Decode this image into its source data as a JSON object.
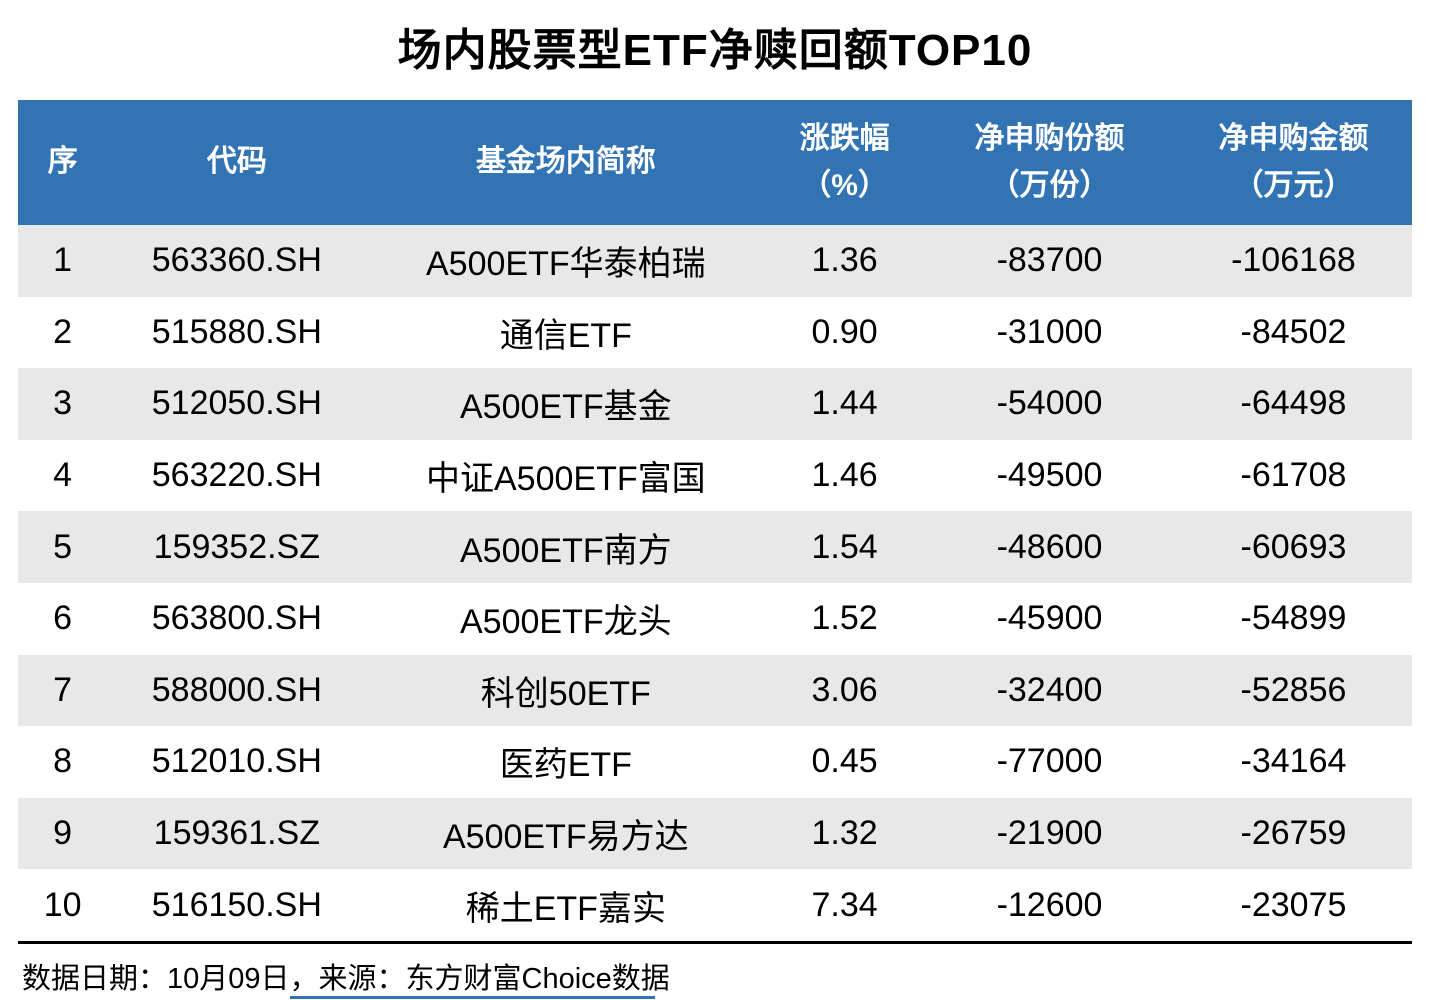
{
  "title": "场内股票型ETF净赎回额TOP10",
  "colors": {
    "header_bg": "#3173B3",
    "header_text": "#FFFFFF",
    "row_alt_bg": "#E8E8E8",
    "row_bg": "#FFFFFF",
    "divider": "#000000",
    "accent_line": "#2E74B5",
    "body_text": "#000000"
  },
  "chart_data": {
    "type": "table",
    "title": "场内股票型ETF净赎回额TOP10",
    "headers": [
      {
        "line1": "序",
        "line2": ""
      },
      {
        "line1": "代码",
        "line2": ""
      },
      {
        "line1": "基金场内简称",
        "line2": ""
      },
      {
        "line1": "涨跌幅",
        "line2": "（%）"
      },
      {
        "line1": "净申购份额",
        "line2": "（万份）"
      },
      {
        "line1": "净申购金额",
        "line2": "（万元）"
      }
    ],
    "rows": [
      {
        "seq": "1",
        "code": "563360.SH",
        "name": "A500ETF华泰柏瑞",
        "chg": "1.36",
        "shares": "-83700",
        "amount": "-106168"
      },
      {
        "seq": "2",
        "code": "515880.SH",
        "name": "通信ETF",
        "chg": "0.90",
        "shares": "-31000",
        "amount": "-84502"
      },
      {
        "seq": "3",
        "code": "512050.SH",
        "name": "A500ETF基金",
        "chg": "1.44",
        "shares": "-54000",
        "amount": "-64498"
      },
      {
        "seq": "4",
        "code": "563220.SH",
        "name": "中证A500ETF富国",
        "chg": "1.46",
        "shares": "-49500",
        "amount": "-61708"
      },
      {
        "seq": "5",
        "code": "159352.SZ",
        "name": "A500ETF南方",
        "chg": "1.54",
        "shares": "-48600",
        "amount": "-60693"
      },
      {
        "seq": "6",
        "code": "563800.SH",
        "name": "A500ETF龙头",
        "chg": "1.52",
        "shares": "-45900",
        "amount": "-54899"
      },
      {
        "seq": "7",
        "code": "588000.SH",
        "name": "科创50ETF",
        "chg": "3.06",
        "shares": "-32400",
        "amount": "-52856"
      },
      {
        "seq": "8",
        "code": "512010.SH",
        "name": "医药ETF",
        "chg": "0.45",
        "shares": "-77000",
        "amount": "-34164"
      },
      {
        "seq": "9",
        "code": "159361.SZ",
        "name": "A500ETF易方达",
        "chg": "1.32",
        "shares": "-21900",
        "amount": "-26759"
      },
      {
        "seq": "10",
        "code": "516150.SH",
        "name": "稀土ETF嘉实",
        "chg": "7.34",
        "shares": "-12600",
        "amount": "-23075"
      }
    ]
  },
  "footer": {
    "source_note": "数据日期：10月09日，来源：东方财富Choice数据"
  }
}
